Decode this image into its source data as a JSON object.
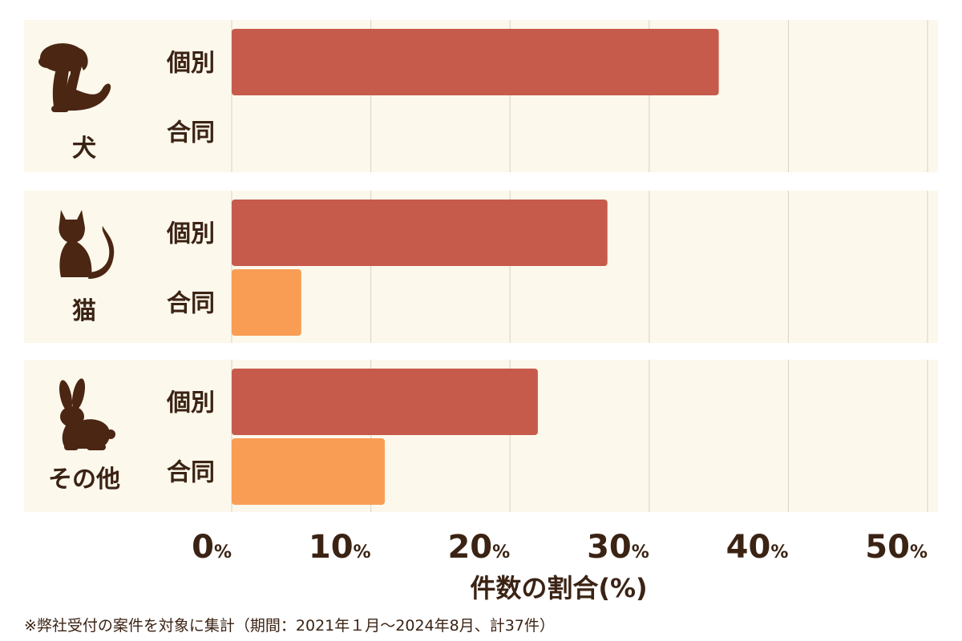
{
  "chart_data": {
    "type": "bar",
    "orientation": "horizontal",
    "groups": [
      {
        "label": "犬",
        "icon": "dog-icon",
        "bars": [
          {
            "label": "個別",
            "value": 35
          },
          {
            "label": "合同",
            "value": 0
          }
        ]
      },
      {
        "label": "猫",
        "icon": "cat-icon",
        "bars": [
          {
            "label": "個別",
            "value": 27
          },
          {
            "label": "合同",
            "value": 5
          }
        ]
      },
      {
        "label": "その他",
        "icon": "rabbit-icon",
        "bars": [
          {
            "label": "個別",
            "value": 22
          },
          {
            "label": "合同",
            "value": 11
          }
        ]
      }
    ],
    "xlabel": "件数の割合(%)",
    "xlim": [
      0,
      50
    ],
    "xticks": [
      0,
      10,
      20,
      30,
      40,
      50
    ],
    "tick_unit": "%",
    "grid": true,
    "colors": {
      "個別": "#c65b4c",
      "合同": "#f99d54",
      "band_background": "#fcf8ec",
      "gridline": "#d7d2c6",
      "text": "#3b2314",
      "icon": "#4a2613"
    }
  },
  "footnote": "※弊社受付の案件を対象に集計（期間：2021年１月〜2024年8月、計37件）"
}
